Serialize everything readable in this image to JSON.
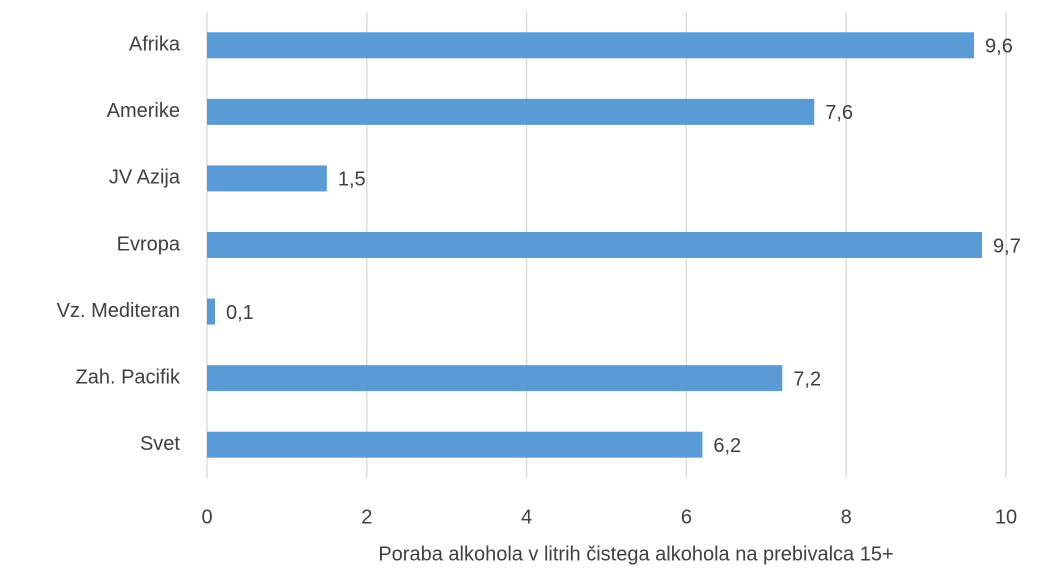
{
  "chart_data": {
    "type": "barh",
    "xlabel": "Poraba alkohola v litrih čistega alkohola na prebivalca 15+",
    "categories": [
      "Afrika",
      "Amerike",
      "JV Azija",
      "Evropa",
      "Vz. Mediteran",
      "Zah. Pacifik",
      "Svet"
    ],
    "values": [
      9.6,
      7.6,
      1.5,
      9.7,
      0.1,
      7.2,
      6.2
    ],
    "value_labels": [
      "9,6",
      "7,6",
      "1,5",
      "9,7",
      "0,1",
      "7,2",
      "6,2"
    ],
    "color": "#5b9bd5",
    "xlim": [
      0,
      10
    ],
    "xticks": [
      0,
      2,
      4,
      6,
      8,
      10
    ],
    "grid": true
  }
}
